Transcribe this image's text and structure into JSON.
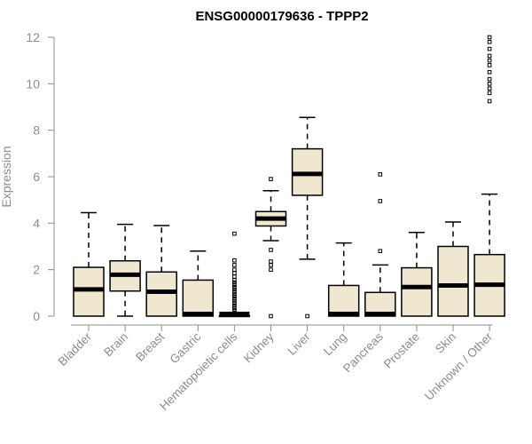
{
  "chart_data": {
    "type": "boxplot",
    "title": "ENSG00000179636 - TPPP2",
    "xlabel": "",
    "ylabel": "Expression",
    "ylim": [
      0,
      12
    ],
    "yticks": [
      0,
      2,
      4,
      6,
      8,
      10,
      12
    ],
    "grid": false,
    "colors": {
      "box_fill": "#efe7cf",
      "box_stroke": "#000000",
      "axis": "#8c8c8c"
    },
    "categories": [
      "Bladder",
      "Brain",
      "Breast",
      "Gastric",
      "Hematopoietic cells",
      "Kidney",
      "Liver",
      "Lung",
      "Pancreas",
      "Prostate",
      "Skin",
      "Unknown / Other"
    ],
    "boxes": [
      {
        "category": "Bladder",
        "min": 0,
        "q1": 0,
        "median": 1.15,
        "q3": 2.1,
        "max": 4.45,
        "outliers": []
      },
      {
        "category": "Brain",
        "min": 0,
        "q1": 1.08,
        "median": 1.78,
        "q3": 2.38,
        "max": 3.95,
        "outliers": []
      },
      {
        "category": "Breast",
        "min": 0,
        "q1": 0,
        "median": 1.05,
        "q3": 1.9,
        "max": 3.9,
        "outliers": []
      },
      {
        "category": "Gastric",
        "min": 0,
        "q1": 0,
        "median": 0.02,
        "q3": 1.55,
        "max": 2.8,
        "outliers": []
      },
      {
        "category": "Hematopoietic cells",
        "min": 0,
        "q1": 0,
        "median": 0.02,
        "q3": 0.02,
        "max": 0.05,
        "outliers": [
          0.15,
          0.25,
          0.35,
          0.45,
          0.55,
          0.65,
          0.75,
          0.85,
          0.95,
          1.05,
          1.15,
          1.25,
          1.35,
          1.45,
          1.55,
          1.7,
          1.85,
          2.0,
          2.2,
          2.4,
          3.55
        ]
      },
      {
        "category": "Kidney",
        "min": 3.25,
        "q1": 3.88,
        "median": 4.2,
        "q3": 4.5,
        "max": 5.4,
        "outliers": [
          0,
          2.0,
          2.2,
          2.35,
          2.85,
          5.9
        ]
      },
      {
        "category": "Liver",
        "min": 2.45,
        "q1": 5.2,
        "median": 6.12,
        "q3": 7.2,
        "max": 8.55,
        "outliers": [
          0
        ]
      },
      {
        "category": "Lung",
        "min": 0,
        "q1": 0,
        "median": 0.02,
        "q3": 1.32,
        "max": 3.15,
        "outliers": []
      },
      {
        "category": "Pancreas",
        "min": 0,
        "q1": 0,
        "median": 0.02,
        "q3": 1.02,
        "max": 2.2,
        "outliers": [
          2.8,
          4.95,
          6.1
        ]
      },
      {
        "category": "Prostate",
        "min": 0,
        "q1": 0,
        "median": 1.25,
        "q3": 2.08,
        "max": 3.6,
        "outliers": []
      },
      {
        "category": "Skin",
        "min": 0,
        "q1": 0,
        "median": 1.32,
        "q3": 3.0,
        "max": 4.05,
        "outliers": []
      },
      {
        "category": "Unknown / Other",
        "min": 0,
        "q1": 0,
        "median": 1.35,
        "q3": 2.65,
        "max": 5.25,
        "outliers": [
          9.25,
          9.6,
          9.8,
          10.0,
          10.2,
          10.5,
          10.8,
          11.0,
          11.2,
          11.5,
          11.8,
          12.0
        ]
      }
    ]
  }
}
